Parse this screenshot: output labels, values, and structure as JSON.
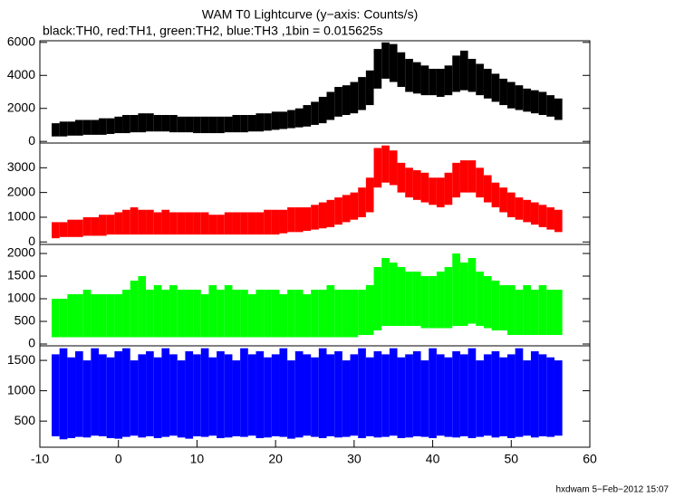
{
  "title": "WAM T0 Lightcurve (y−axis: Counts/s)",
  "subtitle": "black:TH0, red:TH1, green:TH2, blue:TH3 ,1bin = 0.015625s",
  "footer": "hxdwam  5−Feb−2012 15:07",
  "chart_data": [
    {
      "type": "band",
      "name": "TH0",
      "color": "#000000",
      "xlim": [
        -10,
        60
      ],
      "ylim": [
        -100,
        6100
      ],
      "yticks": [
        0,
        2000,
        4000,
        6000
      ],
      "x": [
        -8,
        -7,
        -6,
        -5,
        -4,
        -3,
        -2,
        -1,
        0,
        1,
        2,
        3,
        4,
        5,
        6,
        7,
        8,
        9,
        10,
        11,
        12,
        13,
        14,
        15,
        16,
        17,
        18,
        19,
        20,
        21,
        22,
        23,
        24,
        25,
        26,
        27,
        28,
        29,
        30,
        31,
        32,
        33,
        34,
        35,
        36,
        37,
        38,
        39,
        40,
        41,
        42,
        43,
        44,
        45,
        46,
        47,
        48,
        49,
        50,
        51,
        52,
        53,
        54,
        55,
        56
      ],
      "low": [
        300,
        300,
        350,
        350,
        400,
        400,
        400,
        450,
        500,
        500,
        550,
        550,
        600,
        600,
        600,
        550,
        550,
        550,
        500,
        500,
        500,
        500,
        550,
        550,
        550,
        600,
        600,
        650,
        700,
        750,
        800,
        850,
        900,
        1000,
        1100,
        1300,
        1500,
        1600,
        1700,
        1900,
        2200,
        3200,
        3800,
        3600,
        3300,
        3000,
        2900,
        2800,
        2800,
        2700,
        2800,
        3000,
        3100,
        3000,
        2800,
        2600,
        2400,
        2200,
        2000,
        1900,
        1800,
        1700,
        1600,
        1500,
        1300
      ],
      "high": [
        1100,
        1200,
        1200,
        1300,
        1300,
        1300,
        1400,
        1400,
        1500,
        1600,
        1600,
        1700,
        1700,
        1600,
        1600,
        1600,
        1500,
        1500,
        1500,
        1500,
        1500,
        1500,
        1500,
        1600,
        1600,
        1600,
        1700,
        1700,
        1800,
        1800,
        1900,
        2000,
        2200,
        2400,
        2700,
        3000,
        3300,
        3400,
        3600,
        3900,
        4300,
        5600,
        6000,
        5900,
        5400,
        5000,
        4800,
        4600,
        4400,
        4400,
        4600,
        5200,
        5500,
        5000,
        4700,
        4400,
        4100,
        3800,
        3600,
        3400,
        3200,
        3100,
        3000,
        2800,
        2600
      ]
    },
    {
      "type": "band",
      "name": "TH1",
      "color": "#ff0000",
      "xlim": [
        -10,
        60
      ],
      "ylim": [
        -100,
        4000
      ],
      "yticks": [
        0,
        1000,
        2000,
        3000
      ],
      "x": [
        -8,
        -7,
        -6,
        -5,
        -4,
        -3,
        -2,
        -1,
        0,
        1,
        2,
        3,
        4,
        5,
        6,
        7,
        8,
        9,
        10,
        11,
        12,
        13,
        14,
        15,
        16,
        17,
        18,
        19,
        20,
        21,
        22,
        23,
        24,
        25,
        26,
        27,
        28,
        29,
        30,
        31,
        32,
        33,
        34,
        35,
        36,
        37,
        38,
        39,
        40,
        41,
        42,
        43,
        44,
        45,
        46,
        47,
        48,
        49,
        50,
        51,
        52,
        53,
        54,
        55,
        56
      ],
      "low": [
        150,
        200,
        200,
        200,
        250,
        250,
        250,
        300,
        300,
        300,
        300,
        300,
        300,
        300,
        300,
        300,
        300,
        300,
        300,
        300,
        300,
        300,
        300,
        300,
        300,
        300,
        300,
        300,
        300,
        350,
        400,
        400,
        450,
        500,
        550,
        600,
        700,
        800,
        900,
        1000,
        1200,
        2200,
        2400,
        2300,
        2000,
        1800,
        1700,
        1600,
        1500,
        1400,
        1500,
        1800,
        2000,
        2000,
        1800,
        1600,
        1400,
        1200,
        1000,
        900,
        800,
        700,
        600,
        500,
        400
      ],
      "high": [
        800,
        800,
        900,
        900,
        1000,
        1000,
        1100,
        1100,
        1200,
        1300,
        1400,
        1300,
        1300,
        1200,
        1300,
        1200,
        1200,
        1200,
        1200,
        1200,
        1100,
        1100,
        1200,
        1200,
        1200,
        1200,
        1200,
        1300,
        1300,
        1300,
        1400,
        1400,
        1400,
        1500,
        1600,
        1700,
        1800,
        1900,
        2000,
        2200,
        2600,
        3800,
        3900,
        3700,
        3200,
        3000,
        2900,
        2800,
        2600,
        2600,
        2800,
        3200,
        3300,
        3300,
        3000,
        2700,
        2400,
        2200,
        2000,
        1800,
        1700,
        1600,
        1500,
        1400,
        1300
      ]
    },
    {
      "type": "band",
      "name": "TH2",
      "color": "#00ff00",
      "xlim": [
        -10,
        60
      ],
      "ylim": [
        -40,
        2200
      ],
      "yticks": [
        0,
        500,
        1000,
        1500,
        2000
      ],
      "x": [
        -8,
        -7,
        -6,
        -5,
        -4,
        -3,
        -2,
        -1,
        0,
        1,
        2,
        3,
        4,
        5,
        6,
        7,
        8,
        9,
        10,
        11,
        12,
        13,
        14,
        15,
        16,
        17,
        18,
        19,
        20,
        21,
        22,
        23,
        24,
        25,
        26,
        27,
        28,
        29,
        30,
        31,
        32,
        33,
        34,
        35,
        36,
        37,
        38,
        39,
        40,
        41,
        42,
        43,
        44,
        45,
        46,
        47,
        48,
        49,
        50,
        51,
        52,
        53,
        54,
        55,
        56
      ],
      "low": [
        150,
        150,
        150,
        150,
        150,
        150,
        150,
        150,
        150,
        150,
        150,
        150,
        150,
        150,
        150,
        150,
        150,
        150,
        150,
        150,
        150,
        150,
        150,
        150,
        150,
        150,
        150,
        150,
        150,
        150,
        150,
        150,
        150,
        150,
        150,
        150,
        150,
        150,
        150,
        200,
        200,
        300,
        400,
        400,
        400,
        400,
        400,
        350,
        350,
        350,
        350,
        400,
        400,
        450,
        400,
        350,
        300,
        300,
        200,
        200,
        200,
        200,
        200,
        200,
        200
      ],
      "high": [
        1000,
        1000,
        1100,
        1100,
        1200,
        1100,
        1100,
        1100,
        1100,
        1200,
        1400,
        1500,
        1200,
        1300,
        1200,
        1300,
        1200,
        1200,
        1200,
        1100,
        1300,
        1200,
        1300,
        1200,
        1200,
        1100,
        1200,
        1200,
        1200,
        1100,
        1200,
        1200,
        1100,
        1200,
        1200,
        1300,
        1200,
        1200,
        1200,
        1200,
        1300,
        1700,
        1900,
        1800,
        1700,
        1600,
        1600,
        1500,
        1500,
        1600,
        1700,
        2000,
        1800,
        1900,
        1600,
        1500,
        1400,
        1300,
        1300,
        1200,
        1300,
        1200,
        1300,
        1200,
        1200
      ]
    },
    {
      "type": "band",
      "name": "TH3",
      "color": "#0000ff",
      "xlim": [
        -10,
        60
      ],
      "ylim": [
        70,
        1740
      ],
      "yticks": [
        500,
        1000,
        1500
      ],
      "xticks": [
        -10,
        0,
        10,
        20,
        30,
        40,
        50,
        60
      ],
      "x": [
        -8,
        -7,
        -6,
        -5,
        -4,
        -3,
        -2,
        -1,
        0,
        1,
        2,
        3,
        4,
        5,
        6,
        7,
        8,
        9,
        10,
        11,
        12,
        13,
        14,
        15,
        16,
        17,
        18,
        19,
        20,
        21,
        22,
        23,
        24,
        25,
        26,
        27,
        28,
        29,
        30,
        31,
        32,
        33,
        34,
        35,
        36,
        37,
        38,
        39,
        40,
        41,
        42,
        43,
        44,
        45,
        46,
        47,
        48,
        49,
        50,
        51,
        52,
        53,
        54,
        55,
        56
      ],
      "low": [
        250,
        200,
        220,
        240,
        230,
        260,
        250,
        220,
        210,
        240,
        260,
        230,
        250,
        220,
        240,
        260,
        230,
        210,
        250,
        240,
        260,
        220,
        230,
        250,
        240,
        260,
        220,
        230,
        250,
        240,
        210,
        230,
        260,
        240,
        220,
        250,
        230,
        240,
        260,
        220,
        250,
        230,
        240,
        260,
        220,
        230,
        250,
        240,
        220,
        260,
        240,
        230,
        250,
        220,
        240,
        260,
        230,
        250,
        220,
        240,
        260,
        230,
        250,
        240,
        260
      ],
      "high": [
        1600,
        1700,
        1550,
        1650,
        1500,
        1700,
        1600,
        1550,
        1650,
        1700,
        1500,
        1600,
        1650,
        1550,
        1700,
        1600,
        1500,
        1650,
        1600,
        1700,
        1550,
        1650,
        1600,
        1500,
        1700,
        1600,
        1650,
        1550,
        1600,
        1700,
        1500,
        1650,
        1600,
        1550,
        1700,
        1600,
        1650,
        1500,
        1600,
        1700,
        1550,
        1650,
        1600,
        1700,
        1550,
        1600,
        1650,
        1500,
        1700,
        1600,
        1550,
        1650,
        1600,
        1700,
        1500,
        1600,
        1650,
        1550,
        1600,
        1700,
        1500,
        1650,
        1600,
        1550,
        1500
      ]
    }
  ]
}
